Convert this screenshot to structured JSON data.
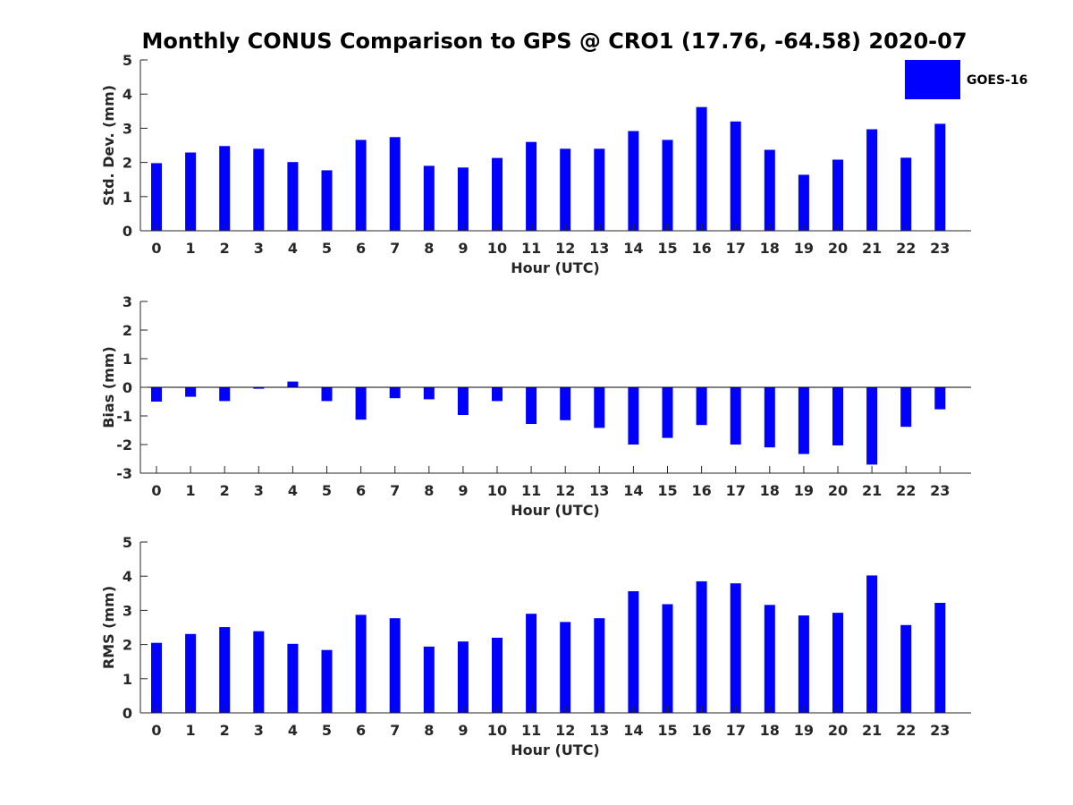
{
  "title": "Monthly CONUS Comparison to GPS @ CRO1 (17.76, -64.58) 2020-07",
  "legend": {
    "label": "GOES-16",
    "placement": "top-right"
  },
  "colors": {
    "bar": "#0000ff",
    "axis": "#262626",
    "text": "#000000"
  },
  "chart_data": [
    {
      "type": "bar",
      "xlabel": "Hour (UTC)",
      "ylabel": "Std. Dev. (mm)",
      "ylim": [
        0,
        5
      ],
      "yticks": [
        "0",
        "1",
        "2",
        "3",
        "4",
        "5"
      ],
      "categories": [
        "0",
        "1",
        "2",
        "3",
        "4",
        "5",
        "6",
        "7",
        "8",
        "9",
        "10",
        "11",
        "12",
        "13",
        "14",
        "15",
        "16",
        "17",
        "18",
        "19",
        "20",
        "21",
        "22",
        "23"
      ],
      "series": [
        {
          "name": "GOES-16",
          "values": [
            1.98,
            2.29,
            2.48,
            2.4,
            2.01,
            1.77,
            2.66,
            2.74,
            1.9,
            1.85,
            2.13,
            2.6,
            2.4,
            2.4,
            2.92,
            2.66,
            3.62,
            3.2,
            2.37,
            1.64,
            2.08,
            2.97,
            2.14,
            3.13
          ]
        }
      ]
    },
    {
      "type": "bar",
      "xlabel": "Hour (UTC)",
      "ylabel": "Bias (mm)",
      "ylim": [
        -3,
        3
      ],
      "yticks": [
        "-3",
        "-2",
        "-1",
        "0",
        "1",
        "2",
        "3"
      ],
      "categories": [
        "0",
        "1",
        "2",
        "3",
        "4",
        "5",
        "6",
        "7",
        "8",
        "9",
        "10",
        "11",
        "12",
        "13",
        "14",
        "15",
        "16",
        "17",
        "18",
        "19",
        "20",
        "21",
        "22",
        "23"
      ],
      "series": [
        {
          "name": "GOES-16",
          "values": [
            -0.5,
            -0.33,
            -0.48,
            -0.05,
            0.2,
            -0.48,
            -1.13,
            -0.38,
            -0.42,
            -0.97,
            -0.48,
            -1.28,
            -1.15,
            -1.42,
            -2.0,
            -1.77,
            -1.32,
            -2.0,
            -2.1,
            -2.33,
            -2.03,
            -2.7,
            -1.38,
            -0.77
          ]
        }
      ]
    },
    {
      "type": "bar",
      "xlabel": "Hour (UTC)",
      "ylabel": "RMS (mm)",
      "ylim": [
        0,
        5
      ],
      "yticks": [
        "0",
        "1",
        "2",
        "3",
        "4",
        "5"
      ],
      "categories": [
        "0",
        "1",
        "2",
        "3",
        "4",
        "5",
        "6",
        "7",
        "8",
        "9",
        "10",
        "11",
        "12",
        "13",
        "14",
        "15",
        "16",
        "17",
        "18",
        "19",
        "20",
        "21",
        "22",
        "23"
      ],
      "series": [
        {
          "name": "GOES-16",
          "values": [
            2.05,
            2.31,
            2.51,
            2.39,
            2.02,
            1.84,
            2.87,
            2.77,
            1.94,
            2.09,
            2.2,
            2.9,
            2.66,
            2.77,
            3.56,
            3.18,
            3.85,
            3.79,
            3.16,
            2.85,
            2.93,
            4.02,
            2.57,
            3.22
          ]
        }
      ]
    }
  ]
}
